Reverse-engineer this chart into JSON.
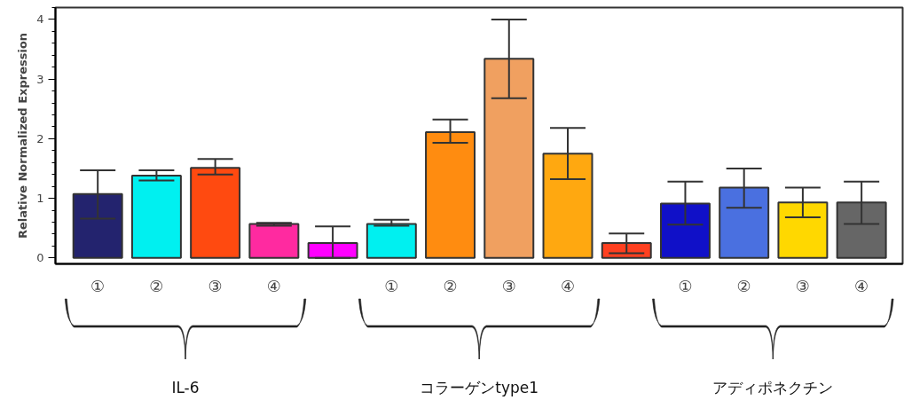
{
  "chart_data": {
    "type": "bar",
    "ylabel": "Relative Normalized Expression",
    "categories": [
      "①",
      "②",
      "③",
      "④",
      null,
      "①",
      "②",
      "③",
      "④",
      null,
      "①",
      "②",
      "③",
      "④"
    ],
    "values": [
      1.07,
      1.38,
      1.51,
      0.57,
      0.25,
      0.57,
      2.11,
      3.34,
      1.75,
      0.25,
      0.91,
      1.18,
      0.93,
      0.93
    ],
    "errors": [
      [
        0.66,
        1.47
      ],
      [
        1.3,
        1.47
      ],
      [
        1.4,
        1.66
      ],
      [
        0.54,
        0.59
      ],
      [
        0,
        0.53
      ],
      [
        0.54,
        0.64
      ],
      [
        1.93,
        2.32
      ],
      [
        2.68,
        4.0
      ],
      [
        1.32,
        2.18
      ],
      [
        0.08,
        0.41
      ],
      [
        0.56,
        1.28
      ],
      [
        0.84,
        1.5
      ],
      [
        0.68,
        1.18
      ],
      [
        0.57,
        1.28
      ]
    ],
    "colors": [
      "#23236e",
      "#00f0f0",
      "#ff4a10",
      "#ff2aa0",
      "#ff00ff",
      "#00f0f0",
      "#ff8c10",
      "#f0a060",
      "#ffa810",
      "#ff4020",
      "#1010c8",
      "#4a70e0",
      "#ffd800",
      "#666666"
    ],
    "ylim": [
      -0.1,
      4.2
    ],
    "yticks": [
      0,
      1,
      2,
      3,
      4
    ],
    "grid": false,
    "annotations": [
      "IL-6",
      "コラーゲンtype1",
      "アディポネクチン"
    ]
  }
}
